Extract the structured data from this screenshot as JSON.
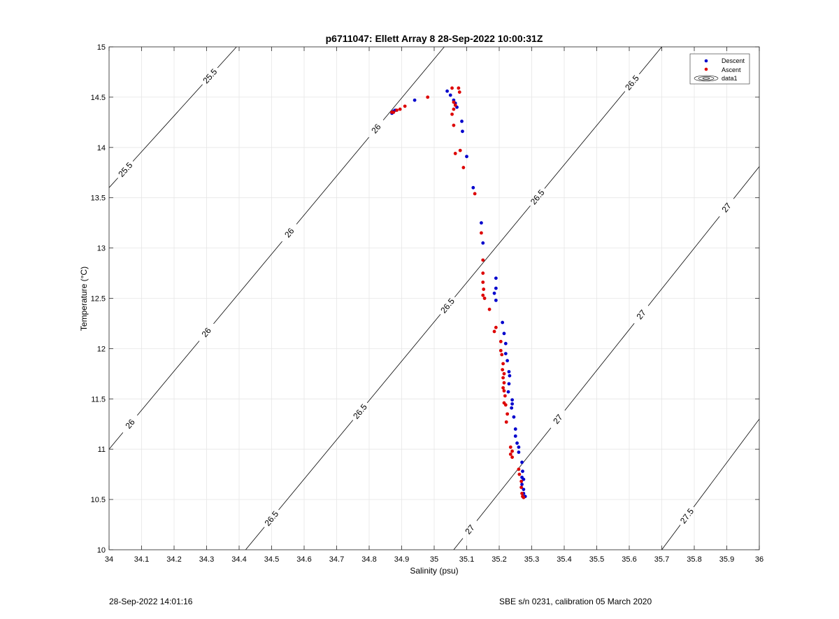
{
  "footer": {
    "left": "28-Sep-2022 14:01:16",
    "right": "SBE s/n 0231, calibration 05 March 2020"
  },
  "chart_data": {
    "type": "scatter",
    "title": "p6711047: Ellett Array 8 28-Sep-2022 10:00:31Z",
    "xlabel": "Salinity (psu)",
    "ylabel": "Temperature (°C)",
    "xlim": [
      34,
      36
    ],
    "ylim": [
      10,
      15
    ],
    "xticks": [
      34,
      34.1,
      34.2,
      34.3,
      34.4,
      34.5,
      34.6,
      34.7,
      34.8,
      34.9,
      35,
      35.1,
      35.2,
      35.3,
      35.4,
      35.5,
      35.6,
      35.7,
      35.8,
      35.9,
      36
    ],
    "xtick_labels": [
      "34",
      "34.1",
      "34.2",
      "34.3",
      "34.4",
      "34.5",
      "34.6",
      "34.7",
      "34.8",
      "34.9",
      "35",
      "35.1",
      "35.2",
      "35.3",
      "35.4",
      "35.5",
      "35.6",
      "35.7",
      "35.8",
      "35.9",
      "36"
    ],
    "yticks": [
      10,
      10.5,
      11,
      11.5,
      12,
      12.5,
      13,
      13.5,
      14,
      14.5,
      15
    ],
    "ytick_labels": [
      "10",
      "10.5",
      "11",
      "11.5",
      "12",
      "12.5",
      "13",
      "13.5",
      "14",
      "14.5",
      "15"
    ],
    "grid": true,
    "legend": {
      "placement": "top-right",
      "entries": [
        "Descent",
        "Ascent",
        "data1"
      ]
    },
    "colors": {
      "descent": "#0000cc",
      "ascent": "#dd0000",
      "contour": "#000000",
      "grid": "#e6e6e6"
    },
    "series": [
      {
        "name": "Descent",
        "points": [
          [
            34.87,
            14.34
          ],
          [
            34.875,
            14.36
          ],
          [
            34.88,
            14.37
          ],
          [
            34.94,
            14.47
          ],
          [
            35.04,
            14.56
          ],
          [
            35.05,
            14.52
          ],
          [
            35.06,
            14.47
          ],
          [
            35.065,
            14.44
          ],
          [
            35.07,
            14.4
          ],
          [
            35.085,
            14.26
          ],
          [
            35.087,
            14.16
          ],
          [
            35.1,
            13.91
          ],
          [
            35.12,
            13.6
          ],
          [
            35.145,
            13.25
          ],
          [
            35.15,
            13.05
          ],
          [
            35.19,
            12.7
          ],
          [
            35.19,
            12.6
          ],
          [
            35.185,
            12.55
          ],
          [
            35.19,
            12.48
          ],
          [
            35.21,
            12.26
          ],
          [
            35.215,
            12.15
          ],
          [
            35.22,
            12.05
          ],
          [
            35.22,
            11.95
          ],
          [
            35.225,
            11.88
          ],
          [
            35.23,
            11.77
          ],
          [
            35.232,
            11.73
          ],
          [
            35.23,
            11.65
          ],
          [
            35.228,
            11.57
          ],
          [
            35.24,
            11.49
          ],
          [
            35.24,
            11.45
          ],
          [
            35.238,
            11.41
          ],
          [
            35.245,
            11.32
          ],
          [
            35.25,
            11.2
          ],
          [
            35.25,
            11.13
          ],
          [
            35.255,
            11.06
          ],
          [
            35.26,
            11.02
          ],
          [
            35.26,
            10.97
          ],
          [
            35.27,
            10.87
          ],
          [
            35.272,
            10.78
          ],
          [
            35.27,
            10.72
          ],
          [
            35.275,
            10.7
          ],
          [
            35.27,
            10.65
          ],
          [
            35.275,
            10.6
          ],
          [
            35.275,
            10.56
          ],
          [
            35.28,
            10.53
          ],
          [
            35.275,
            10.52
          ]
        ]
      },
      {
        "name": "Ascent",
        "points": [
          [
            34.87,
            14.35
          ],
          [
            34.875,
            14.35
          ],
          [
            34.885,
            14.37
          ],
          [
            34.895,
            14.38
          ],
          [
            34.91,
            14.41
          ],
          [
            34.98,
            14.5
          ],
          [
            35.055,
            14.59
          ],
          [
            35.075,
            14.59
          ],
          [
            35.078,
            14.55
          ],
          [
            35.06,
            14.45
          ],
          [
            35.065,
            14.42
          ],
          [
            35.06,
            14.38
          ],
          [
            35.055,
            14.33
          ],
          [
            35.06,
            14.22
          ],
          [
            35.065,
            13.94
          ],
          [
            35.08,
            13.97
          ],
          [
            35.09,
            13.8
          ],
          [
            35.125,
            13.54
          ],
          [
            35.145,
            13.15
          ],
          [
            35.15,
            12.88
          ],
          [
            35.15,
            12.75
          ],
          [
            35.15,
            12.66
          ],
          [
            35.152,
            12.59
          ],
          [
            35.15,
            12.53
          ],
          [
            35.155,
            12.5
          ],
          [
            35.17,
            12.39
          ],
          [
            35.19,
            12.21
          ],
          [
            35.185,
            12.17
          ],
          [
            35.205,
            12.07
          ],
          [
            35.205,
            11.98
          ],
          [
            35.208,
            11.94
          ],
          [
            35.212,
            11.85
          ],
          [
            35.21,
            11.79
          ],
          [
            35.215,
            11.75
          ],
          [
            35.212,
            11.71
          ],
          [
            35.215,
            11.66
          ],
          [
            35.212,
            11.61
          ],
          [
            35.215,
            11.58
          ],
          [
            35.218,
            11.53
          ],
          [
            35.215,
            11.46
          ],
          [
            35.22,
            11.44
          ],
          [
            35.225,
            11.35
          ],
          [
            35.222,
            11.27
          ],
          [
            35.235,
            11.02
          ],
          [
            35.24,
            10.98
          ],
          [
            35.235,
            10.95
          ],
          [
            35.24,
            10.92
          ],
          [
            35.26,
            10.8
          ],
          [
            35.262,
            10.75
          ],
          [
            35.268,
            10.68
          ],
          [
            35.268,
            10.62
          ],
          [
            35.27,
            10.56
          ],
          [
            35.272,
            10.53
          ],
          [
            35.275,
            10.52
          ]
        ]
      }
    ],
    "contours": [
      {
        "level": "25.5",
        "segment": [
          [
            34,
            13.6
          ],
          [
            34.392,
            15
          ]
        ],
        "labels": [
          [
            34.05,
            13.78
          ],
          [
            34.31,
            14.71
          ]
        ]
      },
      {
        "level": "26",
        "segment": [
          [
            34,
            11.0
          ],
          [
            35.031,
            15
          ]
        ],
        "labels": [
          [
            34.065,
            11.25
          ],
          [
            34.3,
            12.16
          ],
          [
            34.555,
            13.15
          ],
          [
            34.82,
            14.19
          ]
        ]
      },
      {
        "level": "26.5",
        "segment": [
          [
            34.42,
            10
          ],
          [
            35.7,
            15
          ]
        ],
        "labels": [
          [
            34.5,
            10.31
          ],
          [
            34.77,
            11.38
          ],
          [
            35.04,
            12.43
          ],
          [
            35.32,
            13.5
          ],
          [
            35.61,
            14.64
          ]
        ]
      },
      {
        "level": "27",
        "segment": [
          [
            35.06,
            10
          ],
          [
            36,
            13.81
          ]
        ],
        "labels": [
          [
            35.11,
            10.2
          ],
          [
            35.38,
            11.3
          ],
          [
            35.64,
            12.33
          ],
          [
            35.9,
            13.4
          ]
        ]
      },
      {
        "level": "27.5",
        "segment": [
          [
            35.7,
            10
          ],
          [
            36,
            11.3
          ]
        ],
        "labels": [
          [
            35.78,
            10.33
          ]
        ]
      }
    ]
  }
}
